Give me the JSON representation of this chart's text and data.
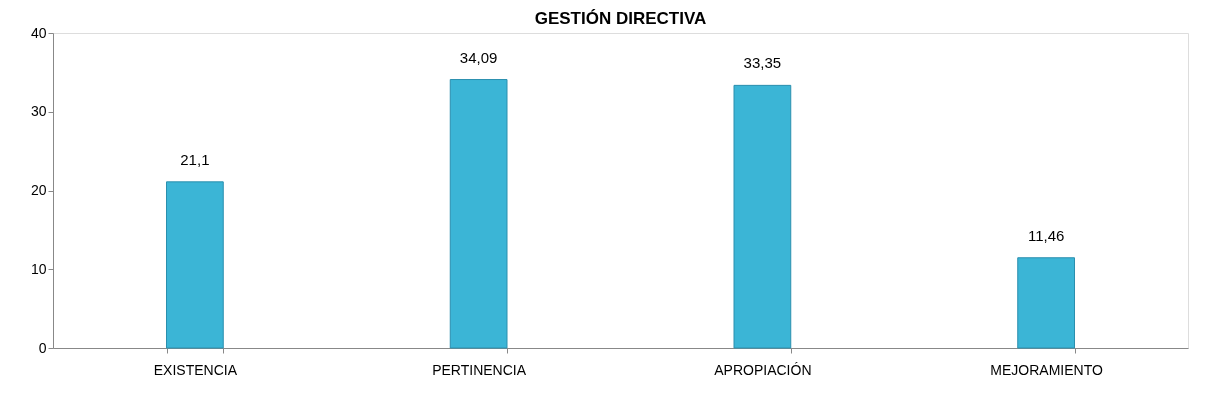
{
  "chart_data": {
    "type": "bar",
    "title": "GESTIÓN DIRECTIVA",
    "categories": [
      "EXISTENCIA",
      "PERTINENCIA",
      "APROPIACIÓN",
      "MEJORAMIENTO"
    ],
    "values": [
      21.1,
      34.09,
      33.35,
      11.46
    ],
    "value_labels": [
      "21,1",
      "34,09",
      "33,35",
      "11,46"
    ],
    "color": "#3bb5d6",
    "ylim": [
      0,
      40
    ],
    "yticks": [
      0,
      10,
      20,
      30,
      40
    ],
    "grid": false
  }
}
